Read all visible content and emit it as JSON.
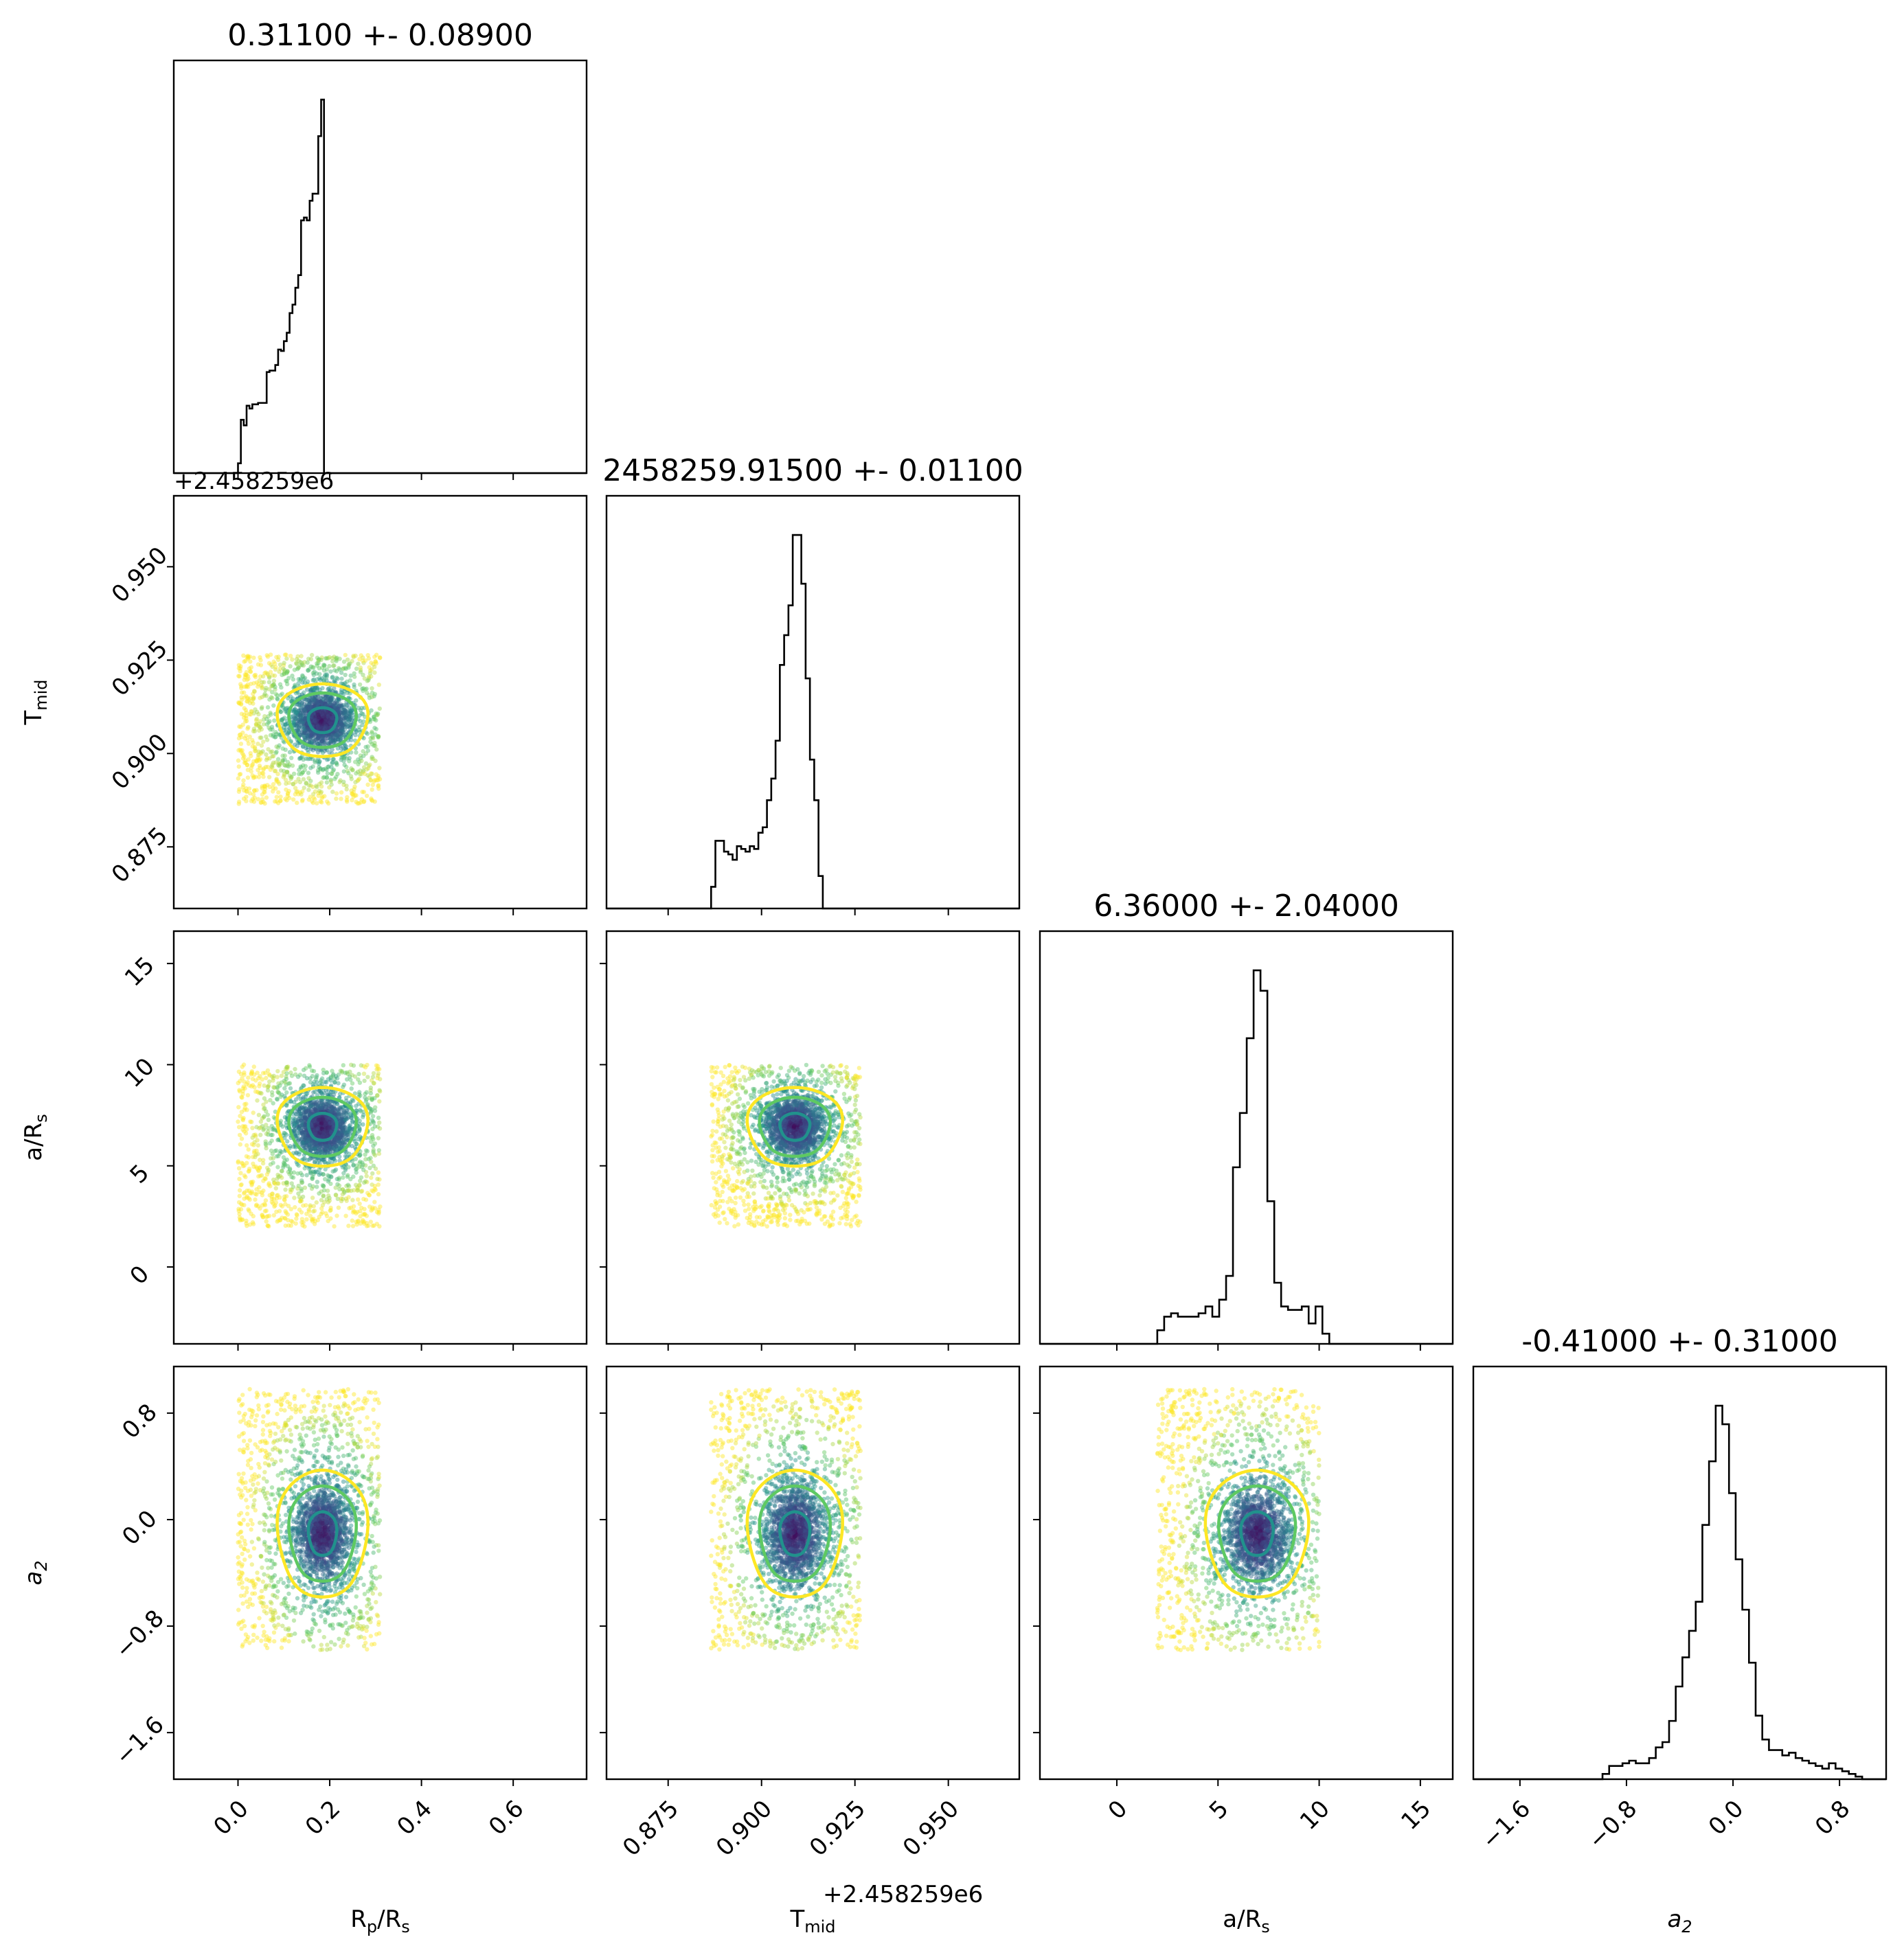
{
  "chart_data": {
    "type": "corner",
    "parameters": [
      {
        "key": "rp",
        "label": "R",
        "sub": "p",
        "label_tail": "/R",
        "tail_sub": "s",
        "title": "0.31100 +- 0.08900",
        "range": [
          -0.14,
          0.76
        ],
        "ticks": [
          0.0,
          0.2,
          0.4,
          0.6
        ],
        "ticklabels": [
          "0.0",
          "0.2",
          "0.4",
          "0.6"
        ]
      },
      {
        "key": "tmid",
        "label": "T",
        "sub": "mid",
        "label_tail": "",
        "tail_sub": "",
        "title": "2458259.91500 +- 0.01100",
        "offset_text": "+2.458259e6",
        "range": [
          0.8585,
          0.969
        ],
        "ticks": [
          0.875,
          0.9,
          0.925,
          0.95
        ],
        "ticklabels": [
          "0.875",
          "0.900",
          "0.925",
          "0.950"
        ]
      },
      {
        "key": "ars",
        "label": "a/R",
        "sub": "s",
        "label_tail": "",
        "tail_sub": "",
        "title": "6.36000 +- 2.04000",
        "range": [
          -3.8,
          16.6
        ],
        "ticks": [
          0,
          5,
          10,
          15
        ],
        "ticklabels": [
          "0",
          "5",
          "10",
          "15"
        ]
      },
      {
        "key": "a2",
        "label": "a",
        "sub": "2",
        "label_tail": "",
        "tail_sub": "",
        "italic": true,
        "title": "-0.41000 +- 0.31000",
        "range": [
          -1.95,
          1.15
        ],
        "ticks": [
          -1.6,
          -0.8,
          0.0,
          0.8
        ],
        "ticklabels": [
          "−1.6",
          "−0.8",
          "0.0",
          "0.8"
        ]
      }
    ],
    "histograms": {
      "rp": {
        "edges_start": 0.0,
        "bin_width": 0.00625,
        "counts": [
          7,
          38,
          34,
          48,
          46,
          49,
          49,
          50,
          50,
          50,
          72,
          73,
          73,
          77,
          88,
          87,
          94,
          100,
          114,
          120,
          132,
          141,
          180,
          182,
          180,
          194,
          199,
          199,
          240,
          266
        ]
      },
      "tmid": {
        "edges_start": 0.8865,
        "bin_width": 0.00115,
        "counts": [
          8,
          25,
          25,
          21,
          20,
          18,
          23,
          22,
          21,
          23,
          22,
          28,
          30,
          40,
          48,
          62,
          90,
          101,
          112,
          138,
          138,
          120,
          85,
          55,
          40,
          12
        ]
      },
      "ars": {
        "edges_start": 2.0,
        "bin_width": 0.34,
        "counts": [
          4,
          8,
          9,
          8,
          8,
          8,
          9,
          11,
          8,
          13,
          20,
          52,
          68,
          90,
          110,
          104,
          42,
          18,
          11,
          10,
          10,
          11,
          6,
          11,
          3
        ]
      },
      "a2": {
        "edges_start": -0.98,
        "bin_width": 0.05,
        "counts": [
          2,
          5,
          5,
          6,
          7,
          6,
          6,
          8,
          12,
          14,
          22,
          35,
          46,
          56,
          67,
          96,
          120,
          141,
          134,
          108,
          83,
          64,
          44,
          24,
          15,
          11,
          11,
          9,
          10,
          8,
          7,
          6,
          5,
          4,
          6,
          4,
          3,
          2,
          1
        ]
      }
    },
    "scatter_extent": {
      "rp": [
        0.0,
        0.31
      ],
      "tmid": [
        0.8865,
        0.9265
      ],
      "ars": [
        2.0,
        10.0
      ],
      "a2": [
        -0.98,
        0.98
      ]
    },
    "colormap": [
      "#440154",
      "#3b528b",
      "#21918c",
      "#5ec962",
      "#fde725"
    ],
    "contour_colors": [
      "#21918c",
      "#5ec962",
      "#fde725"
    ],
    "grid": false
  }
}
